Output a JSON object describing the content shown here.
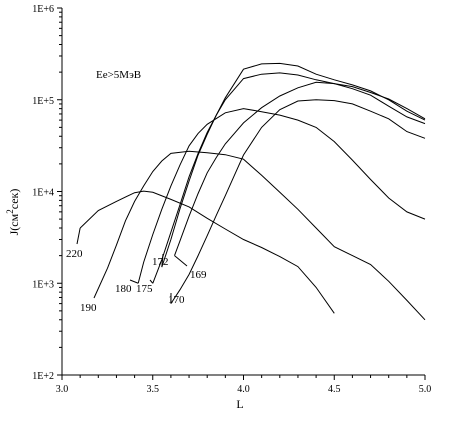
{
  "chart_data": {
    "type": "line",
    "annotation": "Ee>5MэВ",
    "xlabel": "L",
    "ylabel_main": "J(см",
    "ylabel_sup": "2",
    "ylabel_tail": "сек)",
    "xlim": [
      3.0,
      5.0
    ],
    "ylim": [
      100,
      1000000
    ],
    "y_log": true,
    "x_ticks": [
      "3.0",
      "3.5",
      "4.0",
      "4.5",
      "5.0"
    ],
    "y_ticks": [
      "1E+2",
      "1E+3",
      "1E+4",
      "1E+5",
      "1E+6"
    ],
    "grid": false,
    "legend": "none",
    "series": [
      {
        "name": "220",
        "x": [
          3.1,
          3.2,
          3.3,
          3.4,
          3.45,
          3.5,
          3.6,
          3.7,
          3.8,
          3.9,
          4.0,
          4.1,
          4.2,
          4.3,
          4.4,
          4.5
        ],
        "y": [
          4000,
          6200,
          7800,
          9700,
          10100,
          9800,
          8200,
          6800,
          5100,
          3900,
          3000,
          2450,
          1950,
          1520,
          900,
          470
        ]
      },
      {
        "name": "190",
        "x": [
          3.25,
          3.3,
          3.35,
          3.4,
          3.45,
          3.5,
          3.55,
          3.6,
          3.7,
          3.8,
          3.9,
          4.0,
          4.1,
          4.2,
          4.3,
          4.4,
          4.5,
          4.6,
          4.7,
          4.8,
          4.9,
          5.0
        ],
        "y": [
          1450,
          2600,
          4800,
          7800,
          11500,
          16500,
          21500,
          26000,
          27500,
          26500,
          25200,
          22500,
          15000,
          9800,
          6400,
          4000,
          2500,
          2000,
          1600,
          1050,
          650,
          400
        ]
      },
      {
        "name": "180",
        "x": [
          3.42,
          3.45,
          3.5,
          3.55,
          3.6,
          3.65,
          3.7,
          3.75,
          3.8,
          3.9,
          4.0,
          4.1,
          4.2,
          4.3,
          4.4,
          4.5,
          4.6,
          4.7,
          4.8,
          4.9,
          5.0
        ],
        "y": [
          1000,
          1700,
          3400,
          6400,
          11500,
          19500,
          31500,
          43000,
          54000,
          72000,
          80000,
          74000,
          68000,
          60000,
          50000,
          35000,
          22000,
          13500,
          8500,
          6000,
          5000
        ]
      },
      {
        "name": "175",
        "x": [
          3.5,
          3.55,
          3.6,
          3.65,
          3.7,
          3.75,
          3.8,
          3.85,
          3.9,
          4.0,
          4.1,
          4.2,
          4.3,
          4.4,
          4.5,
          4.6,
          4.7,
          4.8,
          4.9,
          5.0
        ],
        "y": [
          1000,
          1800,
          3600,
          7200,
          14500,
          26000,
          44000,
          68000,
          100000,
          170000,
          190000,
          196000,
          186000,
          165000,
          150000,
          132000,
          112000,
          85000,
          65000,
          55000
        ]
      },
      {
        "name": "172",
        "x": [
          3.55,
          3.6,
          3.65,
          3.7,
          3.75,
          3.8,
          3.85,
          3.9,
          4.0,
          4.1,
          4.2,
          4.3,
          4.4,
          4.5,
          4.6,
          4.7,
          4.8,
          4.9,
          5.0
        ],
        "y": [
          1500,
          3000,
          6500,
          13000,
          25000,
          42000,
          68000,
          105000,
          215000,
          246000,
          249000,
          233000,
          190000,
          165000,
          145000,
          125000,
          100000,
          75000,
          60000
        ]
      },
      {
        "name": "169",
        "x": [
          3.62,
          3.65,
          3.7,
          3.75,
          3.8,
          3.85,
          3.9,
          4.0,
          4.1,
          4.2,
          4.3,
          4.4,
          4.5,
          4.6,
          4.7,
          4.8,
          4.9,
          5.0
        ],
        "y": [
          2000,
          2900,
          5400,
          9500,
          16000,
          23500,
          33000,
          56000,
          82000,
          110000,
          135000,
          155000,
          150000,
          139000,
          120000,
          102000,
          80000,
          62000
        ]
      },
      {
        "name": "170",
        "x": [
          3.6,
          3.65,
          3.7,
          3.75,
          3.8,
          3.85,
          3.9,
          3.95,
          4.0,
          4.1,
          4.2,
          4.3,
          4.4,
          4.5,
          4.6,
          4.7,
          4.8,
          4.9,
          5.0
        ],
        "y": [
          600,
          850,
          1250,
          2000,
          3300,
          5500,
          9000,
          15000,
          25000,
          50000,
          78000,
          97000,
          100000,
          98000,
          90000,
          75000,
          62000,
          45000,
          38000
        ]
      }
    ]
  }
}
